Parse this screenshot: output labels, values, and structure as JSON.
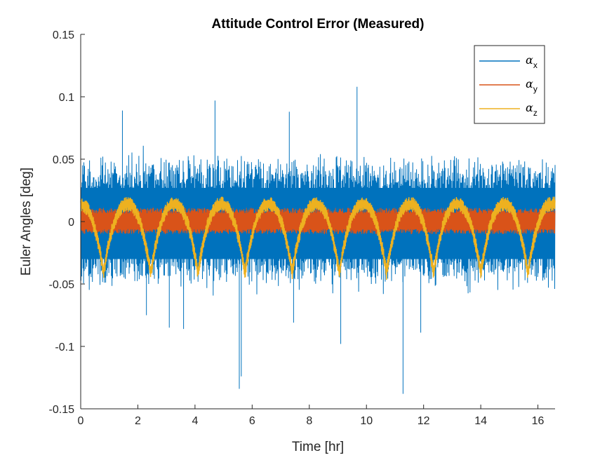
{
  "chart_data": {
    "type": "line",
    "title": "Attitude Control Error (Measured)",
    "xlabel": "Time [hr]",
    "ylabel": "Euler Angles [deg]",
    "xlim": [
      0,
      16.6
    ],
    "ylim": [
      -0.15,
      0.15
    ],
    "xticks": [
      0,
      2,
      4,
      6,
      8,
      10,
      12,
      14,
      16
    ],
    "xtick_labels": [
      "0",
      "2",
      "4",
      "6",
      "8",
      "10",
      "12",
      "14",
      "16"
    ],
    "yticks": [
      -0.15,
      -0.1,
      -0.05,
      0,
      0.05,
      0.1,
      0.15
    ],
    "ytick_labels": [
      "-0.15",
      "-0.1",
      "-0.05",
      "0",
      "0.05",
      "0.1",
      "0.15"
    ],
    "grid": false,
    "legend_position": "top-right",
    "colors": {
      "axes": "#262626",
      "alpha_x": "#0072BD",
      "alpha_y": "#D95319",
      "alpha_z": "#EDB120"
    },
    "series": [
      {
        "name": "αx",
        "legend_symbol": "α",
        "legend_subscript": "x",
        "color": "#0072BD",
        "description_values": {
          "band_low": -0.045,
          "band_high": 0.045,
          "spikes": [
            {
              "x": 5.55,
              "y": -0.134
            },
            {
              "x": 5.62,
              "y": -0.124
            },
            {
              "x": 11.28,
              "y": -0.138
            },
            {
              "x": 9.67,
              "y": 0.108
            },
            {
              "x": 4.7,
              "y": 0.097
            },
            {
              "x": 7.3,
              "y": 0.088
            },
            {
              "x": 2.3,
              "y": -0.075
            },
            {
              "x": 3.1,
              "y": -0.085
            },
            {
              "x": 3.6,
              "y": -0.086
            },
            {
              "x": 7.45,
              "y": -0.081
            },
            {
              "x": 11.9,
              "y": -0.089
            },
            {
              "x": 9.1,
              "y": -0.098
            },
            {
              "x": 1.46,
              "y": 0.089
            }
          ]
        }
      },
      {
        "name": "αy",
        "legend_symbol": "α",
        "legend_subscript": "y",
        "color": "#D95319",
        "description_values": {
          "band_low": -0.01,
          "band_high": 0.011
        }
      },
      {
        "name": "αz",
        "legend_symbol": "α",
        "legend_subscript": "z",
        "color": "#EDB120",
        "description_values": {
          "period_hr": 1.65,
          "peak": 0.02,
          "trough": -0.035,
          "trough_times": [
            0.8,
            2.45,
            4.1,
            5.75,
            7.4,
            9.05,
            10.7,
            12.35,
            14.0,
            15.65
          ]
        }
      }
    ]
  }
}
